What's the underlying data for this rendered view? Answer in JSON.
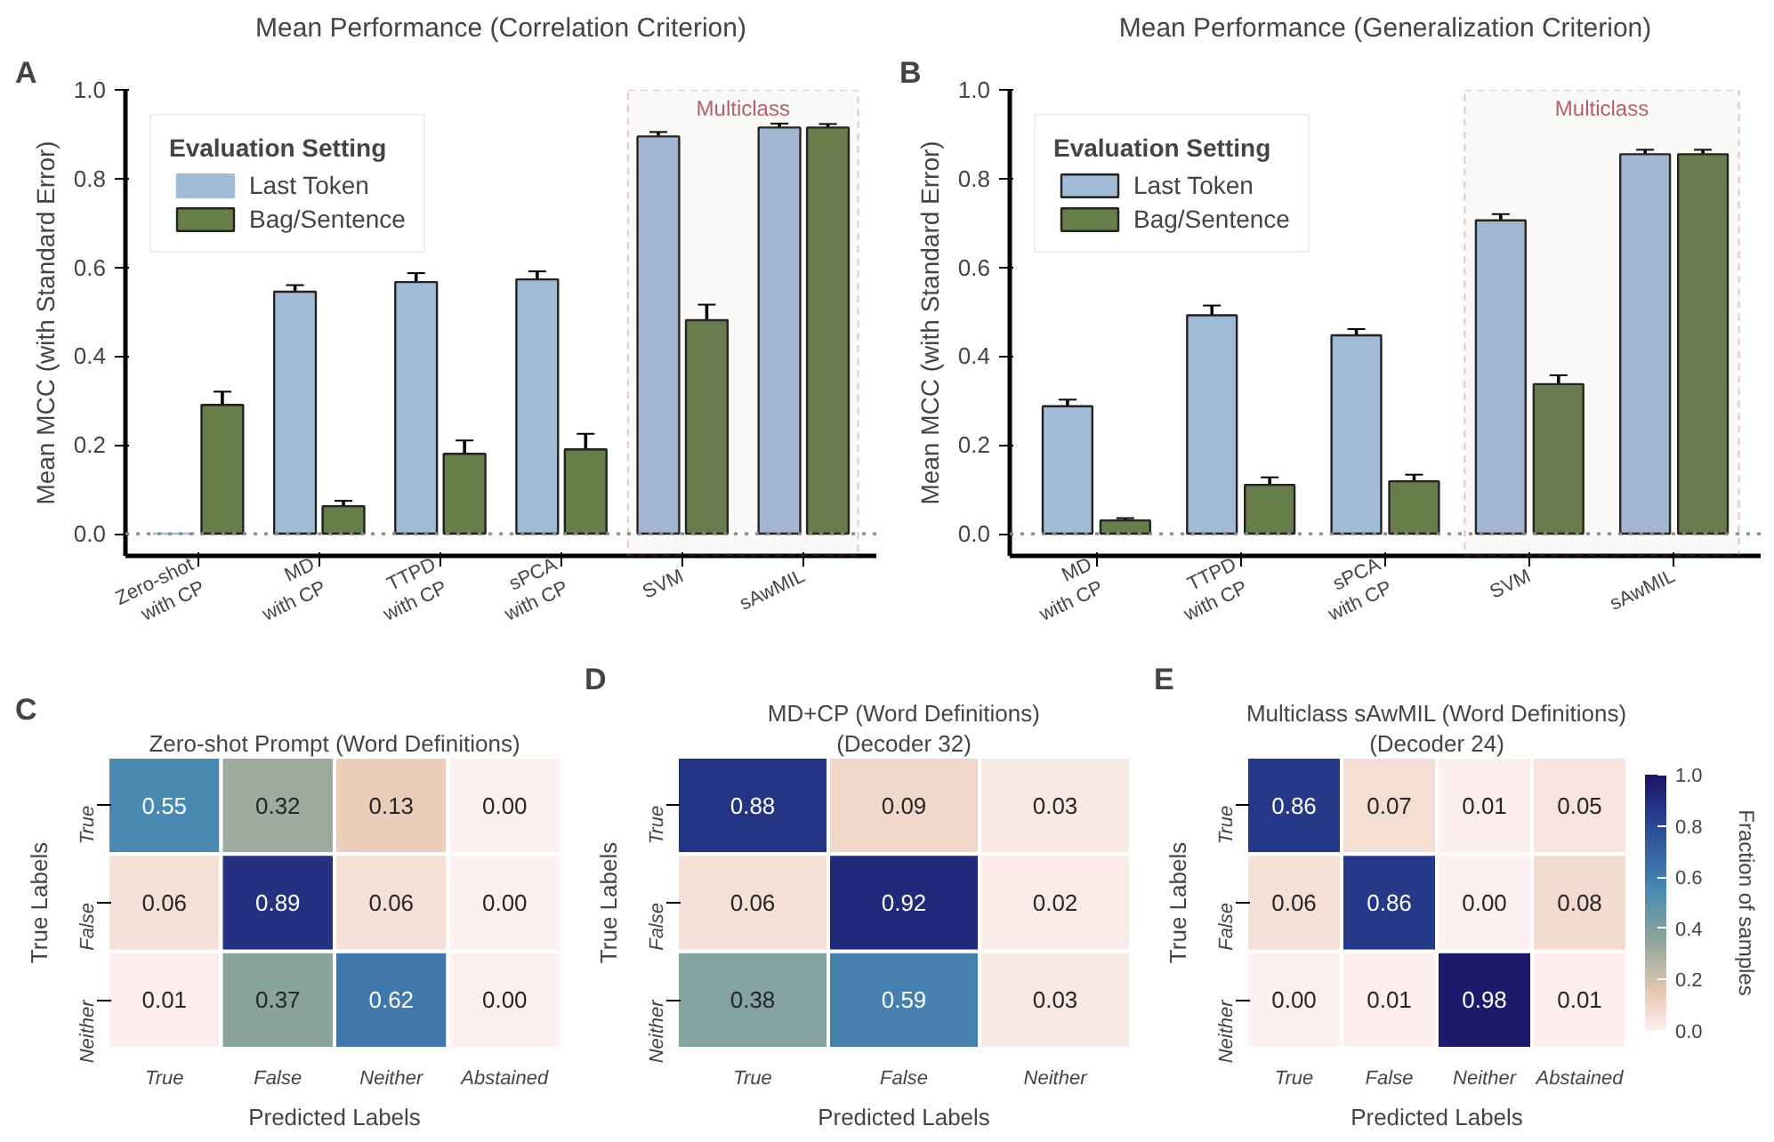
{
  "chart_data": [
    {
      "type": "bar",
      "title": "Mean Performance (Correlation Criterion)",
      "ylabel": "Mean MCC (with Standard Error)",
      "annotations": [
        "A"
      ],
      "categories": [
        "Zero-shot\nwith CP",
        "MD\nwith CP",
        "TTPD\nwith CP",
        "sPCA\nwith CP",
        "SVM",
        "sAwMIL"
      ],
      "series": [
        {
          "name": "Last Token",
          "color": "#a1bad5",
          "values": [
            0.0,
            0.545,
            0.567,
            0.573,
            0.895,
            0.915
          ],
          "errors": [
            null,
            0.015,
            0.02,
            0.018,
            0.01,
            0.009
          ]
        },
        {
          "name": "Bag/Sentence",
          "color": "#657e4a",
          "values": [
            0.29,
            0.062,
            0.18,
            0.19,
            0.481,
            0.915
          ],
          "errors": [
            0.03,
            0.012,
            0.03,
            0.035,
            0.035,
            0.008
          ]
        }
      ],
      "legend_title": "Evaluation Setting",
      "legend": "top left",
      "ylim": [
        -0.05,
        1.0
      ],
      "yticks": [
        {
          "value": 0,
          "label": "0.0"
        },
        {
          "value": 0.2,
          "label": "0.2"
        },
        {
          "value": 0.4,
          "label": "0.4"
        },
        {
          "value": 0.6,
          "label": "0.6"
        },
        {
          "value": 0.8,
          "label": "0.8"
        },
        {
          "value": 1,
          "label": "1.0"
        }
      ],
      "ref_lines": [
        {
          "axis": "y",
          "value": 0,
          "color": "#888888",
          "line_style": "dotted"
        }
      ],
      "bands": [
        {
          "axis": "x",
          "from": "SVM",
          "to": "sAwMIL",
          "label": "Multiclass",
          "color": "#b5606e"
        }
      ]
    },
    {
      "type": "bar",
      "title": "Mean Performance (Generalization Criterion)",
      "ylabel": "Mean MCC (with Standard Error)",
      "annotations": [
        "B"
      ],
      "categories": [
        "MD\nwith CP",
        "TTPD\nwith CP",
        "sPCA\nwith CP",
        "SVM",
        "sAwMIL"
      ],
      "series": [
        {
          "name": "Last Token",
          "color": "#a1bad5",
          "values": [
            0.287,
            0.492,
            0.447,
            0.706,
            0.855
          ],
          "errors": [
            0.015,
            0.022,
            0.014,
            0.014,
            0.01
          ]
        },
        {
          "name": "Bag/Sentence",
          "color": "#657e4a",
          "values": [
            0.03,
            0.11,
            0.118,
            0.337,
            0.855
          ],
          "errors": [
            0.005,
            0.017,
            0.015,
            0.02,
            0.01
          ]
        }
      ],
      "legend_title": "Evaluation Setting",
      "legend": "top left",
      "ylim": [
        -0.05,
        1.0
      ],
      "yticks": [
        {
          "value": 0,
          "label": "0.0"
        },
        {
          "value": 0.2,
          "label": "0.2"
        },
        {
          "value": 0.4,
          "label": "0.4"
        },
        {
          "value": 0.6,
          "label": "0.6"
        },
        {
          "value": 0.8,
          "label": "0.8"
        },
        {
          "value": 1,
          "label": "1.0"
        }
      ],
      "ref_lines": [
        {
          "axis": "y",
          "value": 0,
          "color": "#888888",
          "line_style": "dotted"
        }
      ],
      "bands": [
        {
          "axis": "x",
          "from": "SVM",
          "to": "sAwMIL",
          "label": "Multiclass",
          "color": "#b5606e"
        }
      ]
    },
    {
      "type": "heatmap",
      "title": "Zero-shot Prompt (Word Definitions)",
      "annotations": [
        "C"
      ],
      "xlabel": "Predicted Labels",
      "ylabel": "True Labels",
      "categories": [
        "True",
        "False",
        "Neither",
        "Abstained"
      ],
      "y_categories": [
        "True",
        "False",
        "Neither"
      ],
      "cells": [
        [
          0.55,
          0.32,
          0.13,
          0.0
        ],
        [
          0.06,
          0.89,
          0.06,
          0.0
        ],
        [
          0.01,
          0.37,
          0.62,
          0.0
        ]
      ],
      "cell_labels": [
        [
          "0.55",
          "0.32",
          "0.13",
          "0.00"
        ],
        [
          "0.06",
          "0.89",
          "0.06",
          "0.00"
        ],
        [
          "0.01",
          "0.37",
          "0.62",
          "0.00"
        ]
      ],
      "data_labels": true
    },
    {
      "type": "heatmap",
      "title": "MD+CP (Word Definitions)",
      "subtitle": "(Decoder 32)",
      "annotations": [
        "D"
      ],
      "xlabel": "Predicted Labels",
      "ylabel": "True Labels",
      "categories": [
        "True",
        "False",
        "Neither"
      ],
      "y_categories": [
        "True",
        "False",
        "Neither"
      ],
      "cells": [
        [
          0.88,
          0.09,
          0.03
        ],
        [
          0.06,
          0.92,
          0.02
        ],
        [
          0.38,
          0.59,
          0.03
        ]
      ],
      "cell_labels": [
        [
          "0.88",
          "0.09",
          "0.03"
        ],
        [
          "0.06",
          "0.92",
          "0.02"
        ],
        [
          "0.38",
          "0.59",
          "0.03"
        ]
      ],
      "data_labels": true
    },
    {
      "type": "heatmap",
      "title": "Multiclass sAwMIL (Word Definitions)",
      "subtitle": "(Decoder 24)",
      "annotations": [
        "E"
      ],
      "xlabel": "Predicted Labels",
      "ylabel": "True Labels",
      "categories": [
        "True",
        "False",
        "Neither",
        "Abstained"
      ],
      "y_categories": [
        "True",
        "False",
        "Neither"
      ],
      "cells": [
        [
          0.86,
          0.07,
          0.01,
          0.05
        ],
        [
          0.06,
          0.86,
          0.0,
          0.08
        ],
        [
          0.0,
          0.01,
          0.98,
          0.01
        ]
      ],
      "cell_labels": [
        [
          "0.86",
          "0.07",
          "0.01",
          "0.05"
        ],
        [
          "0.06",
          "0.86",
          "0.00",
          "0.08"
        ],
        [
          "0.00",
          "0.01",
          "0.98",
          "0.01"
        ]
      ],
      "data_labels": true,
      "clim": [
        0,
        1
      ],
      "cticks": [
        {
          "value": 0,
          "label": "0.0"
        },
        {
          "value": 0.2,
          "label": "0.2"
        },
        {
          "value": 0.4,
          "label": "0.4"
        },
        {
          "value": 0.6,
          "label": "0.6"
        },
        {
          "value": 0.8,
          "label": "0.8"
        },
        {
          "value": 1,
          "label": "1.0"
        }
      ],
      "clabel": "Fraction of samples"
    }
  ]
}
